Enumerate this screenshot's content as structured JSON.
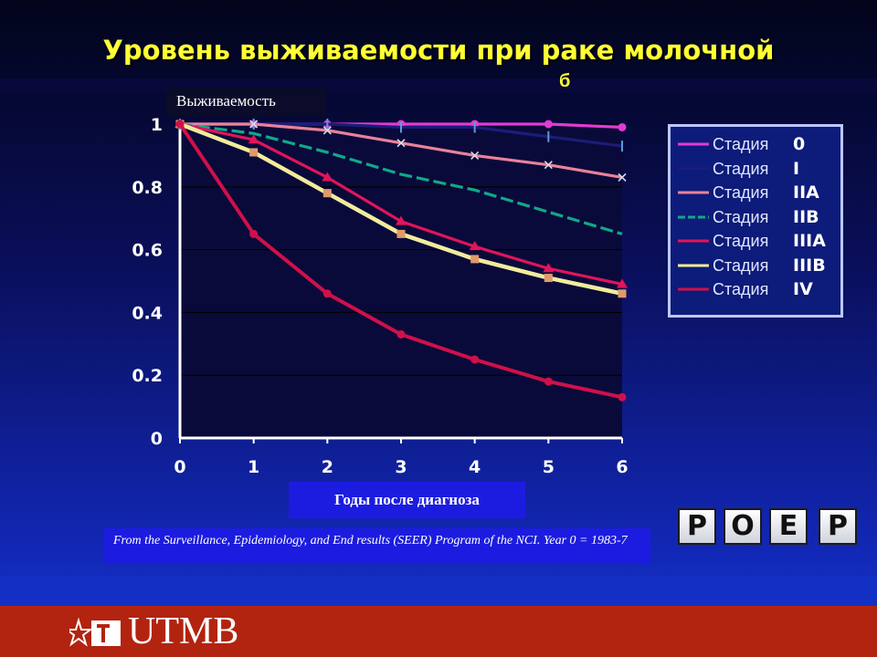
{
  "slide": {
    "title": "Уровень выживаемости при раке молочной",
    "title_tail": "б",
    "source_note": "From the Surveillance, Epidemiology, and End results (SEER) Program of the NCI. Year 0 = 1983-7",
    "logo_letters": [
      "P",
      "O",
      "E",
      "P"
    ],
    "footer_brand": "UTMB",
    "colors": {
      "title": "#ffff33",
      "plot_bg": "#0a0a3a",
      "footer": "#b2240f",
      "label_box": "#1c1ce0"
    }
  },
  "chart_data": {
    "type": "line",
    "ylabel": "Выживаемость",
    "xlabel": "Годы после диагноза",
    "x": [
      0,
      1,
      2,
      3,
      4,
      5,
      6
    ],
    "xlim": [
      0,
      6
    ],
    "ylim": [
      0,
      1
    ],
    "yticks": [
      "0",
      "0.2",
      "0.4",
      "0.6",
      "0.8",
      "1"
    ],
    "xticks": [
      "0",
      "1",
      "2",
      "3",
      "4",
      "5",
      "6"
    ],
    "grid": "horizontal",
    "legend_position": "right",
    "series": [
      {
        "word": "Стадия",
        "stage": "0",
        "color": "#e23bd3",
        "marker": "dot",
        "values": [
          1.0,
          1.0,
          1.0,
          1.0,
          1.0,
          1.0,
          0.99
        ]
      },
      {
        "word": "Стадия",
        "stage": "I",
        "color": "#1c1c7a",
        "marker": "tick",
        "values": [
          1.0,
          1.0,
          1.0,
          0.99,
          0.99,
          0.96,
          0.93
        ]
      },
      {
        "word": "Стадия",
        "stage": "IIA",
        "color": "#e8829a",
        "marker": "x",
        "values": [
          1.0,
          1.0,
          0.98,
          0.94,
          0.9,
          0.87,
          0.83
        ]
      },
      {
        "word": "Стадия",
        "stage": "IIB",
        "color": "#12a889",
        "marker": "none",
        "values": [
          1.0,
          0.97,
          0.91,
          0.84,
          0.79,
          0.72,
          0.65
        ]
      },
      {
        "word": "Стадия",
        "stage": "IIIA",
        "color": "#e0155a",
        "marker": "triangle",
        "values": [
          1.0,
          0.95,
          0.83,
          0.69,
          0.61,
          0.54,
          0.49
        ]
      },
      {
        "word": "Стадия",
        "stage": "IIIB",
        "color": "#f2ec92",
        "marker": "square",
        "values": [
          1.0,
          0.91,
          0.78,
          0.65,
          0.57,
          0.51,
          0.46
        ]
      },
      {
        "word": "Стадия",
        "stage": "IV",
        "color": "#d0104a",
        "marker": "dot",
        "values": [
          1.0,
          0.65,
          0.46,
          0.33,
          0.25,
          0.18,
          0.13
        ]
      }
    ]
  }
}
